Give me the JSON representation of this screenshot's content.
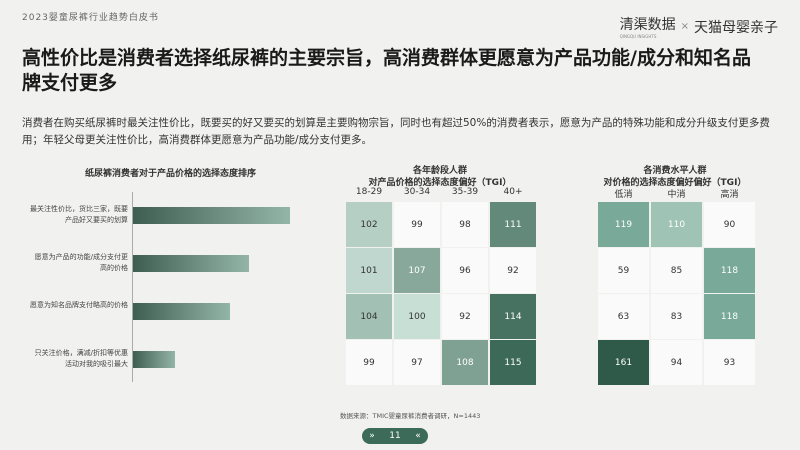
{
  "header": {
    "report_title": "2023婴童尿裤行业趋势白皮书",
    "logo_left": "清渠数据",
    "logo_left_sub": "QINGQU INSIGHTS",
    "logo_sep": "×",
    "logo_right": "天猫母婴亲子"
  },
  "title": "高性价比是消费者选择纸尿裤的主要宗旨，高消费群体更愿意为产品功能/成分和知名品牌支付更多",
  "description": "消费者在购买纸尿裤时最关注性价比，既要买的好又要买的划算是主要购物宗旨，同时也有超过50%的消费者表示，愿意为产品的特殊功能和成分升级支付更多费用；年轻父母更关注性价比，高消费群体更愿意为产品功能/成分支付更多。",
  "bar_chart": {
    "title": "纸尿裤消费者对于产品价格的选择态度排序",
    "items": [
      {
        "label": "最关注性价比，货比三家，既要产品好又要买的划算",
        "relative_length": 1.0
      },
      {
        "label": "愿意为产品的功能/成分支付更高的价格",
        "relative_length": 0.74
      },
      {
        "label": "愿意为知名品牌支付略高的价格",
        "relative_length": 0.62
      },
      {
        "label": "只关注价格，满减/折扣等优惠活动对我的吸引最大",
        "relative_length": 0.27
      }
    ],
    "bar_color_start": "#3f5e52",
    "bar_color_end": "#93b5a7"
  },
  "age_table": {
    "title_line1": "各年龄段人群",
    "title_line2": "对产品价格的选择态度偏好（TGI）",
    "columns": [
      "18-29",
      "30-34",
      "35-39",
      "40+"
    ],
    "rows": [
      [
        102,
        99,
        98,
        111
      ],
      [
        101,
        107,
        96,
        92
      ],
      [
        104,
        100,
        92,
        114
      ],
      [
        99,
        97,
        108,
        115
      ]
    ]
  },
  "spend_table": {
    "title_line1": "各消费水平人群",
    "title_line2": "对价格的选择态度偏好偏好（TGI）",
    "columns": [
      "低消",
      "中消",
      "高消"
    ],
    "rows": [
      [
        119,
        110,
        90
      ],
      [
        59,
        85,
        118
      ],
      [
        63,
        83,
        118
      ],
      [
        161,
        94,
        93
      ]
    ]
  },
  "source": "数据来源：TMIC婴童尿裤消费者调研，N=1443",
  "pager": {
    "prev": "»",
    "page": "11",
    "next": "«"
  }
}
